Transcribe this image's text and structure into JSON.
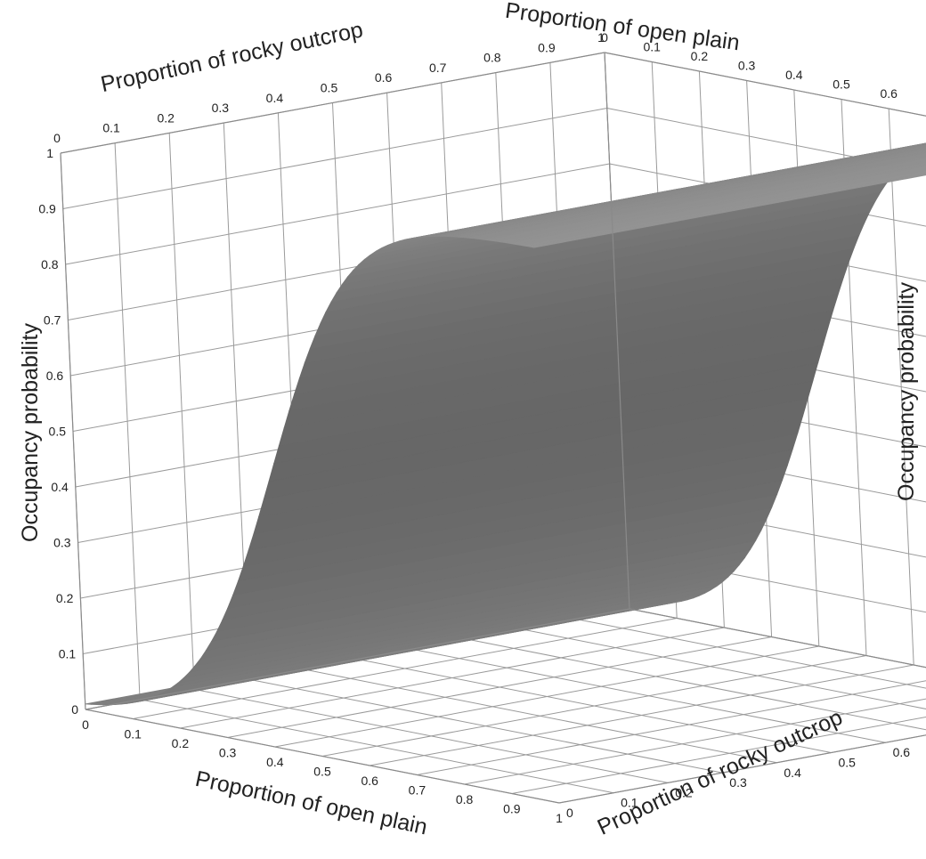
{
  "chart_data": {
    "type": "surface",
    "x_axis": {
      "label": "Proportion of open plain",
      "range": [
        0,
        1
      ],
      "ticks": [
        "0",
        "0.1",
        "0.2",
        "0.3",
        "0.4",
        "0.5",
        "0.6",
        "0.7",
        "0.8",
        "0.9",
        "1"
      ]
    },
    "y_axis": {
      "label": "Proportion of rocky outcrop",
      "range": [
        0,
        1
      ],
      "ticks": [
        "0",
        "0.1",
        "0.2",
        "0.3",
        "0.4",
        "0.5",
        "0.6",
        "0.7",
        "0.8",
        "0.9",
        "1"
      ]
    },
    "z_axis": {
      "label": "Occupancy probability",
      "range": [
        0,
        1
      ],
      "ticks": [
        "0",
        "0.1",
        "0.2",
        "0.3",
        "0.4",
        "0.5",
        "0.6",
        "0.7",
        "0.8",
        "0.9",
        "1"
      ]
    },
    "surface": {
      "description_of_shape": "logistic",
      "x": [
        0,
        0.1,
        0.2,
        0.3,
        0.4,
        0.5,
        0.6,
        0.7,
        0.8,
        0.9,
        1
      ],
      "z_at_rocky_0": [
        0.0,
        0.03,
        0.08,
        0.2,
        0.45,
        0.72,
        0.9,
        0.97,
        0.99,
        1.0,
        1.0
      ],
      "z_at_rocky_1": [
        0.0,
        0.03,
        0.08,
        0.2,
        0.45,
        0.72,
        0.9,
        0.97,
        0.99,
        1.0,
        1.0
      ]
    },
    "grid": true,
    "surface_color": "#808080"
  }
}
